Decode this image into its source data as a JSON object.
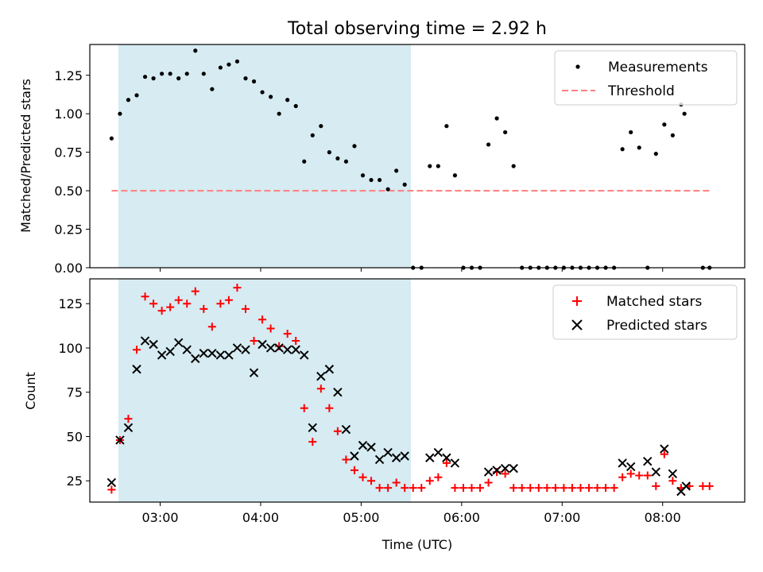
{
  "title": "Total observing time = 2.92 h",
  "xlabel": "Time (UTC)",
  "x_ticks": [
    "03:00",
    "04:00",
    "05:00",
    "06:00",
    "07:00",
    "08:00"
  ],
  "colors": {
    "measurements": "#000000",
    "threshold": "#ff7f7f",
    "matched": "#ff0000",
    "predicted": "#000000",
    "observing_window": "#add8e6"
  },
  "chart_data": [
    {
      "type": "scatter",
      "ylabel": "Matched/Predicted stars",
      "y_ticks": [
        "0.00",
        "0.25",
        "0.50",
        "0.75",
        "1.00",
        "1.25"
      ],
      "xlim": [
        "02:18",
        "08:49"
      ],
      "ylim": [
        0,
        1.45
      ],
      "observing_window": [
        "02:31",
        "05:26"
      ],
      "legend": {
        "placement": "upper right",
        "entries": [
          "Measurements",
          "Threshold"
        ]
      },
      "threshold": {
        "name": "Threshold",
        "value": 0.5,
        "x_range": [
          "02:31",
          "08:29"
        ]
      },
      "series": [
        {
          "name": "Measurements",
          "marker": "dot",
          "points": [
            [
              "02:31",
              0.84
            ],
            [
              "02:36",
              1.0
            ],
            [
              "02:41",
              1.09
            ],
            [
              "02:46",
              1.12
            ],
            [
              "02:51",
              1.24
            ],
            [
              "02:56",
              1.23
            ],
            [
              "03:01",
              1.26
            ],
            [
              "03:06",
              1.26
            ],
            [
              "03:11",
              1.23
            ],
            [
              "03:16",
              1.26
            ],
            [
              "03:21",
              1.41
            ],
            [
              "03:26",
              1.26
            ],
            [
              "03:31",
              1.16
            ],
            [
              "03:36",
              1.3
            ],
            [
              "03:41",
              1.32
            ],
            [
              "03:46",
              1.34
            ],
            [
              "03:51",
              1.23
            ],
            [
              "03:56",
              1.21
            ],
            [
              "04:01",
              1.14
            ],
            [
              "04:06",
              1.11
            ],
            [
              "04:11",
              1.0
            ],
            [
              "04:16",
              1.09
            ],
            [
              "04:21",
              1.05
            ],
            [
              "04:26",
              0.69
            ],
            [
              "04:31",
              0.86
            ],
            [
              "04:36",
              0.92
            ],
            [
              "04:41",
              0.75
            ],
            [
              "04:46",
              0.71
            ],
            [
              "04:51",
              0.69
            ],
            [
              "04:56",
              0.79
            ],
            [
              "05:01",
              0.6
            ],
            [
              "05:06",
              0.57
            ],
            [
              "05:11",
              0.57
            ],
            [
              "05:16",
              0.51
            ],
            [
              "05:21",
              0.63
            ],
            [
              "05:26",
              0.54
            ],
            [
              "05:31",
              0.0
            ],
            [
              "05:36",
              0.0
            ],
            [
              "05:41",
              0.66
            ],
            [
              "05:46",
              0.66
            ],
            [
              "05:51",
              0.92
            ],
            [
              "05:56",
              0.6
            ],
            [
              "06:01",
              0.0
            ],
            [
              "06:06",
              0.0
            ],
            [
              "06:11",
              0.0
            ],
            [
              "06:16",
              0.8
            ],
            [
              "06:21",
              0.97
            ],
            [
              "06:26",
              0.88
            ],
            [
              "06:31",
              0.66
            ],
            [
              "06:36",
              0.0
            ],
            [
              "06:41",
              0.0
            ],
            [
              "06:46",
              0.0
            ],
            [
              "06:51",
              0.0
            ],
            [
              "06:56",
              0.0
            ],
            [
              "07:01",
              0.0
            ],
            [
              "07:06",
              0.0
            ],
            [
              "07:11",
              0.0
            ],
            [
              "07:16",
              0.0
            ],
            [
              "07:21",
              0.0
            ],
            [
              "07:26",
              0.0
            ],
            [
              "07:31",
              0.0
            ],
            [
              "07:36",
              0.77
            ],
            [
              "07:41",
              0.88
            ],
            [
              "07:46",
              0.78
            ],
            [
              "07:51",
              0.0
            ],
            [
              "07:56",
              0.74
            ],
            [
              "08:01",
              0.93
            ],
            [
              "08:06",
              0.86
            ],
            [
              "08:11",
              1.06
            ],
            [
              "08:13",
              1.0
            ],
            [
              "08:24",
              0.0
            ],
            [
              "08:28",
              0.0
            ]
          ]
        }
      ]
    },
    {
      "type": "scatter",
      "ylabel": "Count",
      "y_ticks": [
        "25",
        "50",
        "75",
        "100",
        "125"
      ],
      "xlim": [
        "02:18",
        "08:49"
      ],
      "ylim": [
        13,
        139
      ],
      "observing_window": [
        "02:31",
        "05:26"
      ],
      "legend": {
        "placement": "upper right",
        "entries": [
          "Matched stars",
          "Predicted stars"
        ]
      },
      "series": [
        {
          "name": "Matched stars",
          "marker": "plus",
          "points": [
            [
              "02:31",
              20
            ],
            [
              "02:36",
              48
            ],
            [
              "02:41",
              60
            ],
            [
              "02:46",
              99
            ],
            [
              "02:51",
              129
            ],
            [
              "02:56",
              125
            ],
            [
              "03:01",
              121
            ],
            [
              "03:06",
              123
            ],
            [
              "03:11",
              127
            ],
            [
              "03:16",
              125
            ],
            [
              "03:21",
              132
            ],
            [
              "03:26",
              122
            ],
            [
              "03:31",
              112
            ],
            [
              "03:36",
              125
            ],
            [
              "03:41",
              127
            ],
            [
              "03:46",
              134
            ],
            [
              "03:51",
              122
            ],
            [
              "03:56",
              104
            ],
            [
              "04:01",
              116
            ],
            [
              "04:06",
              111
            ],
            [
              "04:11",
              101
            ],
            [
              "04:16",
              108
            ],
            [
              "04:21",
              104
            ],
            [
              "04:26",
              66
            ],
            [
              "04:31",
              47
            ],
            [
              "04:36",
              77
            ],
            [
              "04:41",
              66
            ],
            [
              "04:46",
              53
            ],
            [
              "04:51",
              37
            ],
            [
              "04:56",
              31
            ],
            [
              "05:01",
              27
            ],
            [
              "05:06",
              25
            ],
            [
              "05:11",
              21
            ],
            [
              "05:16",
              21
            ],
            [
              "05:21",
              24
            ],
            [
              "05:26",
              21
            ],
            [
              "05:31",
              21
            ],
            [
              "05:36",
              21
            ],
            [
              "05:41",
              25
            ],
            [
              "05:46",
              27
            ],
            [
              "05:51",
              35
            ],
            [
              "05:56",
              21
            ],
            [
              "06:01",
              21
            ],
            [
              "06:06",
              21
            ],
            [
              "06:11",
              21
            ],
            [
              "06:16",
              24
            ],
            [
              "06:21",
              30
            ],
            [
              "06:26",
              29
            ],
            [
              "06:31",
              21
            ],
            [
              "06:36",
              21
            ],
            [
              "06:41",
              21
            ],
            [
              "06:46",
              21
            ],
            [
              "06:51",
              21
            ],
            [
              "06:56",
              21
            ],
            [
              "07:01",
              21
            ],
            [
              "07:06",
              21
            ],
            [
              "07:11",
              21
            ],
            [
              "07:16",
              21
            ],
            [
              "07:21",
              21
            ],
            [
              "07:26",
              21
            ],
            [
              "07:31",
              21
            ],
            [
              "07:36",
              27
            ],
            [
              "07:41",
              29
            ],
            [
              "07:46",
              28
            ],
            [
              "07:51",
              28
            ],
            [
              "07:56",
              22
            ],
            [
              "08:01",
              40
            ],
            [
              "08:06",
              25
            ],
            [
              "08:11",
              21
            ],
            [
              "08:16",
              22
            ],
            [
              "08:24",
              22
            ],
            [
              "08:28",
              22
            ]
          ]
        },
        {
          "name": "Predicted stars",
          "marker": "x",
          "points": [
            [
              "02:31",
              24
            ],
            [
              "02:36",
              48
            ],
            [
              "02:41",
              55
            ],
            [
              "02:46",
              88
            ],
            [
              "02:51",
              104
            ],
            [
              "02:56",
              102
            ],
            [
              "03:01",
              96
            ],
            [
              "03:06",
              98
            ],
            [
              "03:11",
              103
            ],
            [
              "03:16",
              99
            ],
            [
              "03:21",
              94
            ],
            [
              "03:26",
              97
            ],
            [
              "03:31",
              97
            ],
            [
              "03:36",
              96
            ],
            [
              "03:41",
              96
            ],
            [
              "03:46",
              100
            ],
            [
              "03:51",
              99
            ],
            [
              "03:56",
              86
            ],
            [
              "04:01",
              102
            ],
            [
              "04:06",
              100
            ],
            [
              "04:11",
              100
            ],
            [
              "04:16",
              99
            ],
            [
              "04:21",
              99
            ],
            [
              "04:26",
              96
            ],
            [
              "04:31",
              55
            ],
            [
              "04:36",
              84
            ],
            [
              "04:41",
              88
            ],
            [
              "04:46",
              75
            ],
            [
              "04:51",
              54
            ],
            [
              "04:56",
              39
            ],
            [
              "05:01",
              45
            ],
            [
              "05:06",
              44
            ],
            [
              "05:11",
              37
            ],
            [
              "05:16",
              41
            ],
            [
              "05:21",
              38
            ],
            [
              "05:26",
              39
            ],
            [
              "05:41",
              38
            ],
            [
              "05:46",
              41
            ],
            [
              "05:51",
              38
            ],
            [
              "05:56",
              35
            ],
            [
              "06:16",
              30
            ],
            [
              "06:21",
              31
            ],
            [
              "06:26",
              32
            ],
            [
              "06:31",
              32
            ],
            [
              "07:36",
              35
            ],
            [
              "07:41",
              33
            ],
            [
              "07:51",
              36
            ],
            [
              "07:56",
              30
            ],
            [
              "08:01",
              43
            ],
            [
              "08:06",
              29
            ],
            [
              "08:11",
              19
            ],
            [
              "08:14",
              22
            ]
          ]
        }
      ]
    }
  ]
}
